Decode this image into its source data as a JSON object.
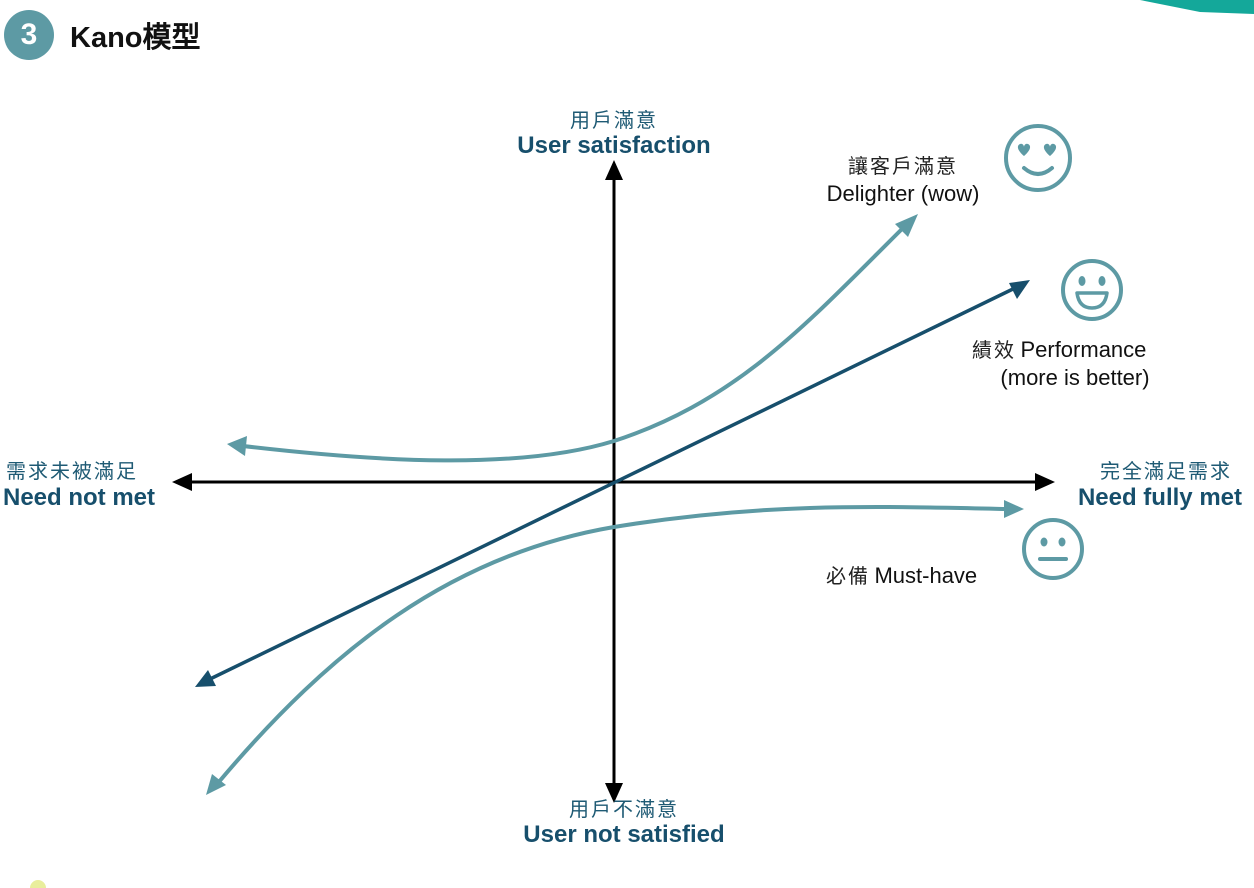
{
  "header": {
    "step_number": "3",
    "title": "Kano模型"
  },
  "axes": {
    "top": {
      "zh": "用戶滿意",
      "en": "User satisfaction"
    },
    "bottom": {
      "zh": "用戶不滿意",
      "en": "User not satisfied"
    },
    "left": {
      "zh": "需求未被滿足",
      "en": "Need not met"
    },
    "right": {
      "zh": "完全滿足需求",
      "en": "Need fully met"
    }
  },
  "curves": {
    "delighter": {
      "zh": "讓客戶滿意",
      "en": "Delighter (wow)",
      "icon": "heart-eyes-face-icon"
    },
    "performance": {
      "zh": "績效",
      "en": "Performance",
      "en_sub": "(more is better)",
      "icon": "smiling-face-icon"
    },
    "must_have": {
      "zh": "必備",
      "en": "Must-have",
      "icon": "neutral-face-icon"
    }
  },
  "colors": {
    "axis": "#000000",
    "performance_line": "#174f6c",
    "teal_curve": "#5d9aa4",
    "accent": "#14a89a"
  }
}
